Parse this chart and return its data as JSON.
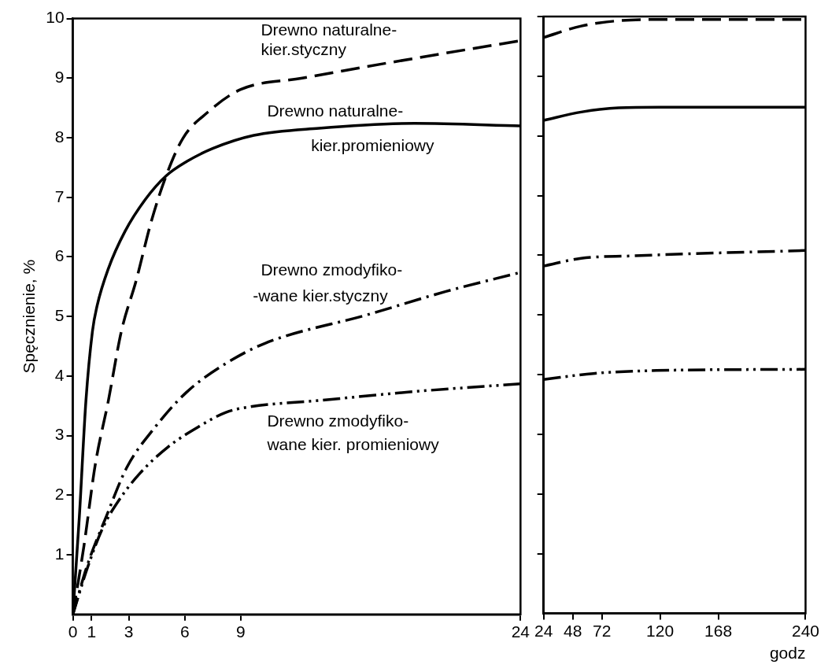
{
  "chart_data": [
    {
      "type": "line",
      "ylabel": "Spęcznienie, %",
      "xlim": [
        0,
        24
      ],
      "xticks": [
        0,
        1,
        3,
        6,
        9,
        24
      ],
      "ylim": [
        0,
        10
      ],
      "yticks": [
        1,
        2,
        3,
        4,
        5,
        6,
        7,
        8,
        9,
        10
      ],
      "grid": false,
      "legend": false,
      "series": [
        {
          "name": "Drewno naturalne- kier.styczny",
          "color": "#000000",
          "line_style": "dashed",
          "x": [
            0,
            0.6,
            1.2,
            1.9,
            2.6,
            3.4,
            4.2,
            5.0,
            5.9,
            7.2,
            9,
            12.3,
            16.6,
            24
          ],
          "values": [
            0,
            1.16,
            2.51,
            3.58,
            4.75,
            5.61,
            6.59,
            7.36,
            7.99,
            8.42,
            8.81,
            9.0,
            9.24,
            9.63
          ]
        },
        {
          "name": "Drewno naturalne- kier.promieniowy",
          "color": "#000000",
          "line_style": "solid",
          "x": [
            0,
            0.35,
            0.7,
            1.05,
            1.3,
            1.9,
            2.8,
            3.9,
            5.0,
            6.1,
            7.5,
            9.7,
            13.2,
            18.3,
            24
          ],
          "values": [
            0,
            1.65,
            3.58,
            4.75,
            5.18,
            5.8,
            6.43,
            6.97,
            7.36,
            7.6,
            7.82,
            8.04,
            8.16,
            8.24,
            8.2
          ]
        },
        {
          "name": "Drewno zmodyfiko- -wane kier.styczny",
          "color": "#000000",
          "line_style": "dashdot",
          "x": [
            0,
            0.77,
            1.8,
            2.9,
            4.3,
            6.1,
            8.2,
            10.3,
            15.8,
            20,
            24
          ],
          "values": [
            0,
            0.82,
            1.65,
            2.47,
            3.1,
            3.73,
            4.21,
            4.55,
            5.03,
            5.42,
            5.74
          ]
        },
        {
          "name": "Drewno zmodyfiko- wane kier. promieniowy",
          "color": "#000000",
          "line_style": "dashdotdot",
          "x": [
            0,
            0.77,
            1.6,
            2.5,
            3.6,
            5.1,
            6.8,
            8.2,
            9.4,
            13.2,
            18.3,
            24
          ],
          "values": [
            0,
            0.77,
            1.45,
            1.93,
            2.37,
            2.81,
            3.16,
            3.39,
            3.48,
            3.59,
            3.74,
            3.87
          ]
        }
      ]
    },
    {
      "type": "line",
      "xlabel": "godz",
      "xlim": [
        24,
        240
      ],
      "xticks": [
        24,
        48,
        72,
        120,
        168,
        240
      ],
      "ylim": [
        0,
        10
      ],
      "yticks": [
        1,
        2,
        3,
        4,
        5,
        6,
        7,
        8,
        9,
        10
      ],
      "tick_labels": "x",
      "grid": false,
      "legend": false,
      "series": [
        {
          "color": "#000000",
          "line_style": "dashed",
          "x": [
            24,
            55,
            86,
            120,
            168,
            240
          ],
          "values": [
            9.65,
            9.84,
            9.93,
            9.95,
            9.95,
            9.95
          ]
        },
        {
          "color": "#000000",
          "line_style": "solid",
          "x": [
            24,
            55,
            86,
            120,
            168,
            240
          ],
          "values": [
            8.26,
            8.4,
            8.47,
            8.48,
            8.48,
            8.48
          ]
        },
        {
          "color": "#000000",
          "line_style": "dashdot",
          "x": [
            24,
            55,
            96,
            168,
            240
          ],
          "values": [
            5.82,
            5.95,
            5.99,
            6.04,
            6.08
          ]
        },
        {
          "color": "#000000",
          "line_style": "dashdotdot",
          "x": [
            24,
            65,
            117,
            240
          ],
          "values": [
            3.92,
            4.02,
            4.07,
            4.09
          ]
        }
      ]
    }
  ]
}
